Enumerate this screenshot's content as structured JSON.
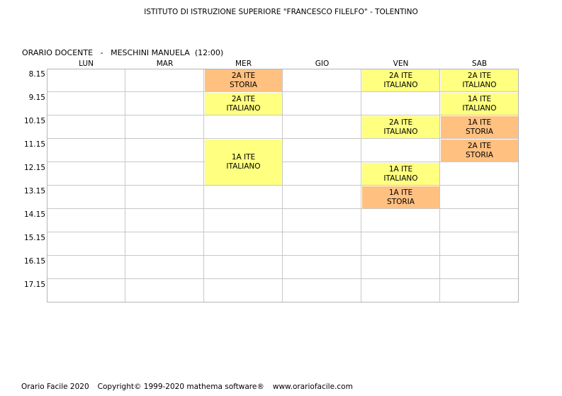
{
  "header": {
    "school": "ISTITUTO DI ISTRUZIONE SUPERIORE \"FRANCESCO FILELFO\" - TOLENTINO",
    "schedule_type": "ORARIO DOCENTE",
    "separator": "-",
    "teacher": "MESCHINI MANUELA",
    "hours": "(12:00)"
  },
  "days": [
    "LUN",
    "MAR",
    "MER",
    "GIO",
    "VEN",
    "SAB"
  ],
  "times": [
    "8.15",
    "9.15",
    "10.15",
    "11.15",
    "12.15",
    "13.15",
    "14.15",
    "15.15",
    "16.15",
    "17.15"
  ],
  "lessons": [
    {
      "day": 2,
      "slot": 0,
      "span": 1,
      "class": "2A ITE",
      "subject": "STORIA",
      "color": "#ffc080"
    },
    {
      "day": 2,
      "slot": 1,
      "span": 1,
      "class": "2A ITE",
      "subject": "ITALIANO",
      "color": "#ffff80"
    },
    {
      "day": 2,
      "slot": 3,
      "span": 2,
      "class": "1A ITE",
      "subject": "ITALIANO",
      "color": "#ffff80"
    },
    {
      "day": 4,
      "slot": 0,
      "span": 1,
      "class": "2A ITE",
      "subject": "ITALIANO",
      "color": "#ffff80"
    },
    {
      "day": 4,
      "slot": 2,
      "span": 1,
      "class": "2A ITE",
      "subject": "ITALIANO",
      "color": "#ffff80"
    },
    {
      "day": 4,
      "slot": 4,
      "span": 1,
      "class": "1A ITE",
      "subject": "ITALIANO",
      "color": "#ffff80"
    },
    {
      "day": 4,
      "slot": 5,
      "span": 1,
      "class": "1A ITE",
      "subject": "STORIA",
      "color": "#ffc080"
    },
    {
      "day": 5,
      "slot": 0,
      "span": 1,
      "class": "2A ITE",
      "subject": "ITALIANO",
      "color": "#ffff80"
    },
    {
      "day": 5,
      "slot": 1,
      "span": 1,
      "class": "1A ITE",
      "subject": "ITALIANO",
      "color": "#ffff80"
    },
    {
      "day": 5,
      "slot": 2,
      "span": 1,
      "class": "1A ITE",
      "subject": "STORIA",
      "color": "#ffc080"
    },
    {
      "day": 5,
      "slot": 3,
      "span": 1,
      "class": "2A ITE",
      "subject": "STORIA",
      "color": "#ffc080"
    }
  ],
  "footer": {
    "product": "Orario Facile 2020",
    "copyright": "Copyright© 1999-2020 mathema software®",
    "website": "www.orariofacile.com"
  }
}
